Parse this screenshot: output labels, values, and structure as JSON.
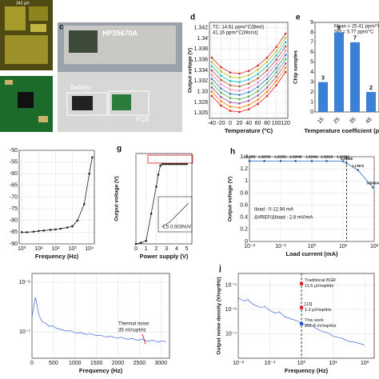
{
  "photos": {
    "a": {
      "scale": "343 µm"
    },
    "c": {
      "panel": "c",
      "instrument": "HP35670A",
      "battery": "Battery",
      "pcb": "PCB"
    }
  },
  "chart_data": [
    {
      "type": "line",
      "panel": "d",
      "xlabel": "Temperature (°C)",
      "ylabel": "Output voltage (V)",
      "x": [
        -40,
        -20,
        0,
        20,
        40,
        60,
        80,
        100,
        120
      ],
      "xlim": [
        -45,
        125
      ],
      "ylim": [
        1.325,
        1.343
      ],
      "xticks": [
        -40,
        -20,
        0,
        20,
        40,
        60,
        80,
        100,
        120
      ],
      "yticks": [
        1.326,
        1.328,
        1.33,
        1.332,
        1.334,
        1.336,
        1.338,
        1.34,
        1.342
      ],
      "grid": true,
      "markers": true,
      "annotations": [
        "TC: 14.61 ppm/°C(Best)",
        "41.16 ppm/°C(Worst)"
      ],
      "series": [
        {
          "color": "#e41a1c",
          "values": [
            1.3292,
            1.3274,
            1.3264,
            1.3262,
            1.3267,
            1.3277,
            1.3292,
            1.3312,
            1.3337
          ]
        },
        {
          "color": "#ff7f00",
          "values": [
            1.33,
            1.3282,
            1.3272,
            1.327,
            1.3275,
            1.3285,
            1.33,
            1.332,
            1.3345
          ]
        },
        {
          "color": "#984ea3",
          "values": [
            1.3308,
            1.329,
            1.328,
            1.3278,
            1.3283,
            1.3293,
            1.3308,
            1.3328,
            1.3353
          ]
        },
        {
          "color": "#4daf4a",
          "values": [
            1.3316,
            1.3298,
            1.3288,
            1.3286,
            1.3291,
            1.3301,
            1.3316,
            1.3336,
            1.3361
          ]
        },
        {
          "color": "#377eb8",
          "values": [
            1.3324,
            1.3306,
            1.3296,
            1.3294,
            1.3299,
            1.3309,
            1.3324,
            1.3344,
            1.3369
          ]
        },
        {
          "color": "#f781bf",
          "values": [
            1.3332,
            1.3314,
            1.3304,
            1.3302,
            1.3307,
            1.3317,
            1.3332,
            1.3352,
            1.3377
          ]
        },
        {
          "color": "#a65628",
          "values": [
            1.334,
            1.3322,
            1.3312,
            1.331,
            1.3315,
            1.3325,
            1.334,
            1.336,
            1.3385
          ]
        },
        {
          "color": "#17becf",
          "values": [
            1.3348,
            1.333,
            1.332,
            1.3318,
            1.3323,
            1.3333,
            1.3348,
            1.3368,
            1.3393
          ]
        },
        {
          "color": "#bcbd22",
          "values": [
            1.3356,
            1.3338,
            1.3328,
            1.3326,
            1.3331,
            1.3341,
            1.3356,
            1.3376,
            1.3401
          ]
        },
        {
          "color": "#d62728",
          "values": [
            1.3364,
            1.3346,
            1.3336,
            1.3334,
            1.3339,
            1.3349,
            1.3364,
            1.3384,
            1.3409
          ]
        }
      ]
    },
    {
      "type": "bar",
      "panel": "e",
      "xlabel": "Temperature coefficient (ppm/",
      "ylabel": "Chip samples",
      "categories": [
        "15",
        "25",
        "35",
        "45"
      ],
      "values": [
        3,
        8,
        7,
        2
      ],
      "color": "#3b7fd6",
      "ylim": [
        0,
        9
      ],
      "yticks": [
        0,
        1,
        2,
        3,
        4,
        5,
        6,
        7,
        8,
        9
      ],
      "grid": false,
      "data_labels": true,
      "annotations": [
        "Mean = 25.41 ppm/°C",
        "Std = 5.77 ppm/°C"
      ]
    },
    {
      "type": "line",
      "xlabel": "Frequency (Hz)",
      "xscale": "log",
      "x": [
        1,
        2,
        5,
        10,
        20,
        50,
        100,
        200,
        500,
        1000,
        2000,
        5000,
        10000,
        15000
      ],
      "xlim": [
        0.7,
        20000
      ],
      "ylim": [
        -90,
        -50
      ],
      "xticks": [
        {
          "value": 1,
          "label": "10⁰"
        },
        {
          "value": 10,
          "label": "10¹"
        },
        {
          "value": 100,
          "label": "10²"
        },
        {
          "value": 1000,
          "label": "10³"
        },
        {
          "value": 10000,
          "label": "10⁴"
        }
      ],
      "yticks": [
        -90,
        -85,
        -80,
        -75,
        -70,
        -65,
        -60,
        -55,
        -50
      ],
      "grid": true,
      "markers": true,
      "series": [
        {
          "color": "#222222",
          "values": [
            -85,
            -85,
            -84.8,
            -84.5,
            -84.3,
            -84,
            -83.8,
            -83.5,
            -83,
            -82.5,
            -80,
            -73,
            -60,
            -53
          ]
        }
      ]
    },
    {
      "type": "line",
      "panel": "g",
      "xlabel": "Power supply (V)",
      "ylabel": "Output voltage (V)",
      "x": [
        0,
        0.5,
        1,
        1.5,
        2,
        2.2,
        2.4,
        2.6,
        2.8,
        3,
        3.2,
        3.4,
        3.6,
        3.8,
        4,
        4.2,
        4.4,
        4.6,
        4.8,
        5
      ],
      "xlim": [
        0,
        5.5
      ],
      "ylim": [
        0,
        1.5
      ],
      "xticks": [
        0,
        1,
        2,
        3,
        4,
        5
      ],
      "grid": true,
      "markers": true,
      "annotations": [
        "LS 0.003%/V"
      ],
      "series": [
        {
          "color": "#222222",
          "values": [
            0,
            0.02,
            0.05,
            0.5,
            0.95,
            1.15,
            1.3,
            1.325,
            1.325,
            1.325,
            1.325,
            1.325,
            1.325,
            1.325,
            1.325,
            1.325,
            1.325,
            1.325,
            1.325,
            1.325
          ]
        }
      ]
    },
    {
      "type": "line",
      "panel": "h",
      "xlabel": "Load current (mA)",
      "ylabel": "Output voltage (V)",
      "xscale": "log",
      "x": [
        0.01,
        0.03,
        0.1,
        0.3,
        1,
        3,
        10,
        12.94,
        30,
        90
      ],
      "xlim": [
        0.01,
        100
      ],
      "ylim": [
        0,
        1.4
      ],
      "xticks": [
        {
          "value": 0.01,
          "label": "10⁻²"
        },
        {
          "value": 0.1,
          "label": "10⁻¹"
        },
        {
          "value": 1,
          "label": "10⁰"
        },
        {
          "value": 10,
          "label": "10¹"
        },
        {
          "value": 100,
          "label": "10²"
        }
      ],
      "yticks": [
        0,
        0.2,
        0.4,
        0.6,
        0.8,
        1,
        1.2,
        1.4
      ],
      "grid": true,
      "markers": true,
      "data_labels": true,
      "vline": 12.94,
      "annotations": [
        "Iload : 0-12.94 mA",
        "ΔVREF/ΔIload : 2.8 mV/mA"
      ],
      "series": [
        {
          "color": "#2b5fb3",
          "values": [
            1.32955,
            1.32953,
            1.32951,
            1.32948,
            1.32941,
            1.32918,
            1.32563,
            1.29366,
            1.17872,
            0.89304
          ]
        }
      ]
    },
    {
      "type": "line",
      "xlabel": "Frequency (Hz)",
      "yscale": "log",
      "x": [
        0,
        80,
        160,
        240,
        320,
        400,
        480,
        560,
        640,
        720,
        800,
        880,
        960,
        1040,
        1120,
        1200,
        1280,
        1360,
        1440,
        1520,
        1600,
        1680,
        1760,
        1840,
        1920,
        2000,
        2080,
        2160,
        2240,
        2320,
        2400,
        2480,
        2560,
        2640,
        2720,
        2800,
        2880,
        2960,
        3040,
        3120
      ],
      "xlim": [
        0,
        3200
      ],
      "ylim": [
        3e-08,
        1.5e-06
      ],
      "xticks": [
        0,
        500,
        1000,
        1500,
        2000,
        2500,
        3000
      ],
      "yticks": [
        {
          "value": 1e-07,
          "label": "10⁻⁷"
        },
        {
          "value": 1e-06,
          "label": "10⁻⁶"
        }
      ],
      "grid": true,
      "markers": false,
      "annotations": [
        "Thermal noise:",
        "35 nV/sqrtHz"
      ],
      "series": [
        {
          "color": "#1f4fd1",
          "values": [
            2e-07,
            5e-07,
            2.2e-07,
            1.6e-07,
            1.5e-07,
            1.3e-07,
            1.35e-07,
            1.2e-07,
            1.15e-07,
            1.1e-07,
            1.05e-07,
            1.08e-07,
            1e-07,
            9.6e-08,
            9.8e-08,
            9.3e-08,
            9e-08,
            9.2e-08,
            8.8e-08,
            8.5e-08,
            8.7e-08,
            8.2e-08,
            8e-08,
            8.3e-08,
            7.8e-08,
            7.6e-08,
            7.9e-08,
            7.4e-08,
            7.2e-08,
            7.5e-08,
            7.1e-08,
            6.9e-08,
            7.2e-08,
            6.8e-08,
            6.6e-08,
            6.9e-08,
            6.5e-08,
            6.4e-08,
            6.7e-08,
            6.3e-08
          ]
        }
      ]
    },
    {
      "type": "line",
      "panel": "j",
      "xlabel": "Frequency (Hz)",
      "ylabel": "Output noise density (V/sqrtHz)",
      "xscale": "log",
      "yscale": "log",
      "x": [
        0.01,
        0.015,
        0.02,
        0.03,
        0.05,
        0.07,
        0.1,
        0.15,
        0.2,
        0.3,
        0.5,
        0.7,
        1,
        1.5,
        2,
        3,
        5,
        7,
        10,
        15,
        20,
        30,
        50,
        70,
        100
      ],
      "xlim": [
        0.01,
        200
      ],
      "ylim": [
        1e-08,
        3e-05
      ],
      "xticks": [
        {
          "value": 0.01,
          "label": "10⁻²"
        },
        {
          "value": 0.1,
          "label": "10⁻¹"
        },
        {
          "value": 1,
          "label": "10⁰"
        },
        {
          "value": 10,
          "label": "10¹"
        },
        {
          "value": 100,
          "label": "10²"
        }
      ],
      "yticks": [
        {
          "value": 1e-07,
          "label": "10⁻⁷"
        },
        {
          "value": 1e-06,
          "label": "10⁻⁶"
        },
        {
          "value": 1e-05,
          "label": "10⁻⁵"
        }
      ],
      "grid": true,
      "markers": false,
      "vline": 1,
      "series": [
        {
          "color": "#1f4fd1",
          "values": [
            3e-06,
            2.2e-06,
            2.5e-06,
            1.6e-06,
            1.2e-06,
            1.3e-06,
            9e-07,
            7e-07,
            8e-07,
            5e-07,
            4e-07,
            3.5e-07,
            2.6e-07,
            2.2e-07,
            2.4e-07,
            1.6e-07,
            1.2e-07,
            1.1e-07,
            8e-08,
            7e-08,
            6.5e-08,
            5e-08,
            4.5e-08,
            4e-08,
            3.5e-08
          ]
        }
      ],
      "points": [
        {
          "label": "Traditional BGR",
          "value_text": "11.5 µV/sqrtHz",
          "x": 1,
          "y": 1.15e-05,
          "color": "#e31a1c"
        },
        {
          "label": "[13]",
          "value_text": "1.2 µV/sqrtHz",
          "x": 1,
          "y": 1.2e-06,
          "color": "#e31a1c"
        },
        {
          "label": "This work",
          "value_text": "261.8 nV/sqrtHz",
          "x": 1,
          "y": 2.618e-07,
          "color": "#1f4fd1"
        }
      ]
    }
  ]
}
